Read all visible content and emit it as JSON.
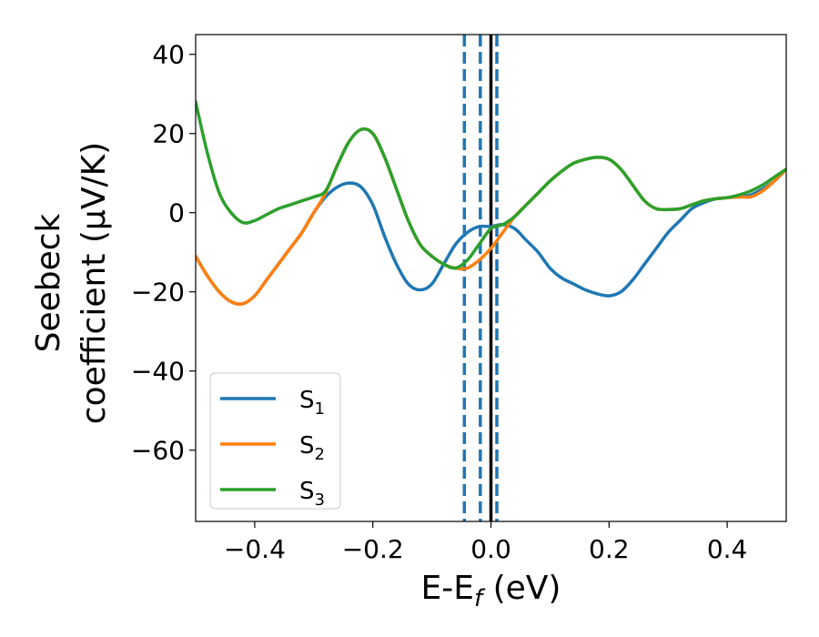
{
  "chart_data": {
    "type": "line",
    "title": "",
    "xlabel": {
      "main": "E-E",
      "sub": "f",
      "suffix": " (eV)"
    },
    "ylabel": {
      "line1": "Seebeck",
      "line2": "coefficient  (μV/K)"
    },
    "xlim": [
      -0.5,
      0.5
    ],
    "ylim": [
      -78,
      45
    ],
    "xticks": [
      -0.4,
      -0.2,
      0.0,
      0.2,
      0.4
    ],
    "xtick_labels": [
      "−0.4",
      "−0.2",
      "0.0",
      "0.2",
      "0.4"
    ],
    "yticks": [
      -60,
      -40,
      -20,
      0,
      20,
      40
    ],
    "ytick_labels": [
      "−60",
      "−40",
      "−20",
      "0",
      "20",
      "40"
    ],
    "grid": false,
    "legend_position": "lower-left",
    "vlines": [
      {
        "x": 0.0,
        "style": "solid",
        "color": "#000000"
      },
      {
        "x": -0.045,
        "style": "dashed",
        "color": "#1f77b4"
      },
      {
        "x": -0.018,
        "style": "dashed",
        "color": "#1f77b4"
      },
      {
        "x": 0.01,
        "style": "dashed",
        "color": "#1f77b4"
      }
    ],
    "series": [
      {
        "name": "S",
        "sub": "1",
        "color": "#1f77b4",
        "x": [
          -0.5,
          -0.48,
          -0.46,
          -0.44,
          -0.42,
          -0.4,
          -0.38,
          -0.36,
          -0.34,
          -0.32,
          -0.3,
          -0.28,
          -0.26,
          -0.24,
          -0.22,
          -0.2,
          -0.18,
          -0.16,
          -0.14,
          -0.12,
          -0.1,
          -0.08,
          -0.06,
          -0.04,
          -0.02,
          0.0,
          0.02,
          0.04,
          0.06,
          0.08,
          0.1,
          0.12,
          0.14,
          0.16,
          0.18,
          0.2,
          0.22,
          0.24,
          0.26,
          0.28,
          0.3,
          0.32,
          0.34,
          0.36,
          0.38,
          0.4,
          0.42,
          0.44,
          0.46,
          0.48,
          0.5
        ],
        "y": [
          -11,
          -16,
          -20,
          -22.5,
          -23,
          -21,
          -17,
          -13,
          -9,
          -5,
          0,
          4,
          6.5,
          7.5,
          6.5,
          2,
          -6,
          -13,
          -18,
          -19.5,
          -18,
          -13,
          -8,
          -5,
          -3.5,
          -3.5,
          -3,
          -4,
          -7,
          -10,
          -14,
          -16.5,
          -18,
          -19.5,
          -20.5,
          -21,
          -20,
          -17,
          -13,
          -9,
          -5,
          -2,
          1,
          2.5,
          3.5,
          3.8,
          4,
          4.5,
          6,
          8,
          11
        ]
      },
      {
        "name": "S",
        "sub": "2",
        "color": "#ff7f0e",
        "x": [
          -0.5,
          -0.48,
          -0.46,
          -0.44,
          -0.42,
          -0.4,
          -0.38,
          -0.36,
          -0.34,
          -0.32,
          -0.3,
          -0.28,
          -0.26,
          -0.24,
          -0.22,
          -0.2,
          -0.18,
          -0.16,
          -0.14,
          -0.12,
          -0.1,
          -0.08,
          -0.06,
          -0.04,
          -0.02,
          0.0,
          0.02,
          0.04,
          0.06,
          0.08,
          0.1,
          0.12,
          0.14,
          0.16,
          0.18,
          0.2,
          0.22,
          0.24,
          0.26,
          0.28,
          0.3,
          0.32,
          0.34,
          0.36,
          0.38,
          0.4,
          0.42,
          0.44,
          0.46,
          0.48,
          0.5
        ],
        "y": [
          -11,
          -16,
          -20,
          -22.5,
          -23,
          -21,
          -17,
          -13,
          -9,
          -5,
          0,
          5,
          12,
          18,
          21,
          20,
          14,
          6,
          -2,
          -8,
          -11,
          -13,
          -14,
          -14,
          -12,
          -9,
          -5,
          -1,
          2,
          5,
          8,
          10.5,
          12.5,
          13.5,
          14,
          13.5,
          11,
          7,
          3,
          1,
          0.8,
          1,
          2,
          3,
          3.5,
          3.8,
          4,
          4,
          5.5,
          8,
          11
        ]
      },
      {
        "name": "S",
        "sub": "3",
        "color": "#2ca02c",
        "x": [
          -0.5,
          -0.48,
          -0.46,
          -0.44,
          -0.42,
          -0.4,
          -0.38,
          -0.36,
          -0.34,
          -0.32,
          -0.3,
          -0.28,
          -0.26,
          -0.24,
          -0.22,
          -0.2,
          -0.18,
          -0.16,
          -0.14,
          -0.12,
          -0.1,
          -0.08,
          -0.06,
          -0.04,
          -0.02,
          0.0,
          0.02,
          0.04,
          0.06,
          0.08,
          0.1,
          0.12,
          0.14,
          0.16,
          0.18,
          0.2,
          0.22,
          0.24,
          0.26,
          0.28,
          0.3,
          0.32,
          0.34,
          0.36,
          0.38,
          0.4,
          0.42,
          0.44,
          0.46,
          0.48,
          0.5
        ],
        "y": [
          28,
          15,
          5,
          0,
          -2.5,
          -2,
          -0.5,
          1,
          2,
          3,
          4,
          5.5,
          12,
          18,
          21,
          20,
          14,
          6,
          -2,
          -8,
          -11,
          -13,
          -14,
          -12,
          -8,
          -4,
          -3,
          -1,
          2,
          5,
          8,
          10.5,
          12.5,
          13.5,
          14,
          13.5,
          11,
          7,
          3,
          1,
          0.8,
          1,
          2,
          3,
          3.5,
          3.8,
          4.5,
          5.5,
          7,
          9,
          11
        ]
      }
    ]
  }
}
